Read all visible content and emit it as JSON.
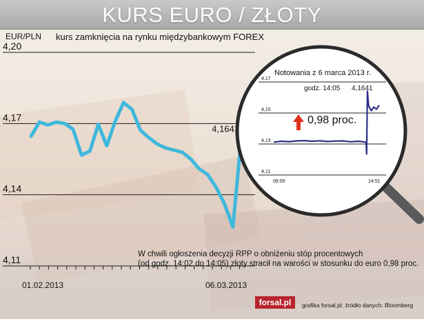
{
  "title": "KURS EURO / ZŁOTY",
  "unit_label": "EUR/PLN",
  "subtitle": "kurs zamknięcia na rynku międzybankowym FOREX",
  "note_line1": "W chwili ogłoszenia decyzji RPP o obniżeniu stóp procentowych",
  "note_line2": "(od godz. 14:02 do 14:05) złoty stracił na warości w stosunku do euro 0,98 proc.",
  "logo": "forsal.pl",
  "credit": "grafika forsal.pl;   źródło danych: Bloomberg",
  "colors": {
    "main_line": "#3fb8dc",
    "inset_line": "#2c2f8a",
    "arrow": "#e0321e",
    "title_bar": "#b3b3b3"
  },
  "chart_data": [
    {
      "type": "line",
      "title": "",
      "xlabel": "",
      "ylabel": "EUR/PLN",
      "ylim": [
        4.11,
        4.2
      ],
      "yticks": [
        "4,20",
        "4,17",
        "4,14",
        "4,11"
      ],
      "xticks": [
        "01.02.2013",
        "06.03.2013"
      ],
      "series": [
        {
          "name": "",
          "values": [
            4.1647,
            4.1706,
            4.1694,
            4.1706,
            4.17,
            4.1676,
            4.1567,
            4.1584,
            4.1697,
            4.1606,
            4.1709,
            4.1788,
            4.176,
            4.1672,
            4.1641,
            4.1614,
            4.1597,
            4.1588,
            4.1579,
            4.155,
            4.1509,
            4.1485,
            4.1432,
            4.1362,
            4.1264,
            4.1641
          ]
        }
      ],
      "annotations": [
        {
          "label": "4,1641",
          "x": "06.03.2013",
          "y": 4.1641
        }
      ],
      "grid": "horizontal"
    },
    {
      "type": "line",
      "title": "Notowania z 6 marca 2013 r.",
      "ylim": [
        4.11,
        4.17
      ],
      "yticks": [
        "4,17",
        "4,15",
        "4,13",
        "4,11"
      ],
      "xticks": [
        "08:00",
        "14:51"
      ],
      "series": [
        {
          "name": "",
          "x": [
            "08:00",
            "08:30",
            "09:00",
            "09:30",
            "10:00",
            "10:30",
            "11:00",
            "11:30",
            "12:00",
            "12:30",
            "13:00",
            "13:30",
            "14:00",
            "14:02",
            "14:05",
            "14:10",
            "14:20",
            "14:30",
            "14:40",
            "14:51"
          ],
          "values": [
            4.1312,
            4.1318,
            4.1315,
            4.132,
            4.1322,
            4.1318,
            4.1321,
            4.1316,
            4.1319,
            4.132,
            4.1314,
            4.1318,
            4.1312,
            4.1235,
            4.1641,
            4.1545,
            4.1515,
            4.1538,
            4.1524,
            4.155
          ]
        }
      ],
      "annotations": [
        {
          "label": "godz. 14:05",
          "value": "4,1641"
        },
        {
          "label": "0,98 proc."
        }
      ]
    }
  ]
}
